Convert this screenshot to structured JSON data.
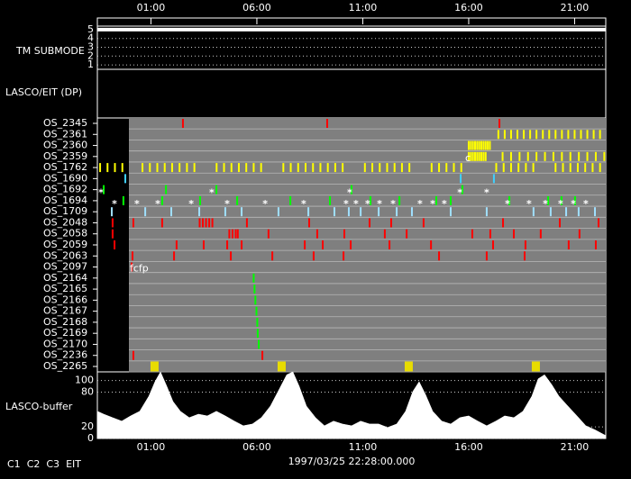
{
  "chart_data": [
    {
      "type": "step",
      "title": "TM SUBMODE",
      "x": [
        -1.53,
        22.47
      ],
      "values": [
        5,
        5
      ],
      "color": "#ffffff",
      "ylim": [
        0.5,
        5.4
      ],
      "yticks": [
        1,
        2,
        3,
        4,
        5
      ],
      "grid": true
    },
    {
      "type": "timeline",
      "title": "LASCO/EIT (DP)",
      "xlim": [
        -1.53,
        22.47
      ],
      "xticks": [
        {
          "value": 1,
          "label": "01:00"
        },
        {
          "value": 6,
          "label": "06:00"
        },
        {
          "value": 11,
          "label": "11:00"
        },
        {
          "value": 16,
          "label": "16:00"
        },
        {
          "value": 21,
          "label": "21:00"
        }
      ],
      "rows": [
        {
          "name": "OS_2345",
          "color": "#ff0000",
          "x": [
            2.51,
            9.32,
            17.45
          ]
        },
        {
          "name": "OS_2361",
          "color": "#ffff00",
          "x": [
            17.4,
            17.7,
            18.0,
            18.3,
            18.6,
            18.9,
            19.2,
            19.5,
            19.8,
            20.1,
            20.4,
            20.7,
            21.0,
            21.3,
            21.6,
            21.9,
            22.2
          ]
        },
        {
          "name": "OS_2360",
          "color": "#ffff00",
          "x": [
            16.0,
            16.1,
            16.2,
            16.3,
            16.4,
            16.5,
            16.6,
            16.7,
            16.8,
            16.9,
            17.0
          ]
        },
        {
          "name": "OS_2359",
          "color": "#ffff00",
          "x": [
            16.0,
            16.1,
            16.2,
            16.3,
            16.4,
            16.5,
            16.6,
            16.7,
            16.8,
            17.6,
            18.0,
            18.4,
            18.8,
            19.2,
            19.6,
            20.0,
            20.4,
            20.8,
            21.2,
            21.6,
            22.0,
            22.4
          ]
        },
        {
          "name": "OS_1762",
          "color": "#ffff00",
          "x": [
            -1.4,
            -1.05,
            -0.7,
            -0.35,
            0.6,
            0.95,
            1.3,
            1.65,
            2.0,
            2.35,
            2.7,
            3.05,
            4.1,
            4.45,
            4.8,
            5.15,
            5.5,
            5.85,
            6.2,
            7.25,
            7.6,
            7.95,
            8.3,
            8.65,
            9.0,
            9.35,
            9.7,
            10.05,
            11.1,
            11.45,
            11.8,
            12.15,
            12.5,
            12.85,
            13.2,
            14.25,
            14.6,
            14.95,
            15.3,
            15.65,
            17.3,
            17.65,
            18.0,
            18.35,
            18.7,
            19.05,
            20.1,
            20.45,
            20.8,
            21.15,
            21.5,
            21.85,
            22.2
          ]
        },
        {
          "name": "OS_1690",
          "color": "#40d0ff",
          "x": [
            -0.21,
            15.62,
            17.19
          ]
        },
        {
          "name": "OS_1692",
          "color": "#00ff00",
          "x": [
            -1.23,
            1.71,
            4.09,
            10.47,
            15.7
          ],
          "marker": "*",
          "marker_x": [
            -1.36,
            3.87,
            10.38,
            15.58,
            16.85
          ]
        },
        {
          "name": "OS_1694",
          "color": "#00ff00",
          "x": [
            -0.3,
            1.53,
            3.32,
            5.07,
            7.58,
            9.45,
            11.36,
            12.73,
            14.47,
            15.15,
            17.92,
            19.75,
            20.38,
            21.02
          ],
          "marker": "*",
          "marker_x": [
            -0.72,
            0.34,
            1.32,
            2.9,
            4.6,
            6.39,
            8.21,
            10.21,
            10.68,
            11.23,
            11.79,
            12.43,
            13.7,
            14.3,
            14.85,
            17.83,
            18.85,
            19.62,
            20.34,
            20.94,
            21.53
          ]
        },
        {
          "name": "OS_1709",
          "color": "#a0e0ff",
          "x": [
            -0.85,
            0.73,
            1.96,
            3.28,
            4.51,
            5.28,
            7.02,
            8.43,
            9.66,
            10.34,
            10.9,
            11.75,
            12.6,
            13.32,
            15.15,
            16.85,
            19.06,
            19.87,
            20.6,
            21.19,
            21.96
          ]
        },
        {
          "name": "OS_2048",
          "color": "#ff0000",
          "x": [
            -0.81,
            0.17,
            1.53,
            3.3,
            3.45,
            3.6,
            3.75,
            3.9,
            5.53,
            8.47,
            11.32,
            12.34,
            13.87,
            17.62,
            20.3,
            22.13
          ]
        },
        {
          "name": "OS_2058",
          "color": "#ff0000",
          "x": [
            -0.81,
            4.7,
            4.85,
            5.0,
            5.1,
            6.55,
            8.85,
            10.13,
            12.04,
            13.07,
            16.17,
            17.02,
            18.13,
            19.4,
            21.23
          ]
        },
        {
          "name": "OS_2059",
          "color": "#ff0000",
          "x": [
            -0.72,
            2.21,
            3.49,
            4.6,
            5.28,
            8.26,
            9.11,
            10.43,
            12.26,
            14.22,
            17.15,
            18.68,
            20.72,
            22.0
          ]
        },
        {
          "name": "OS_2063",
          "color": "#ff0000",
          "x": [
            0.13,
            2.09,
            4.77,
            6.73,
            8.68,
            10.09,
            14.6,
            16.85,
            18.64
          ]
        },
        {
          "name": "OS_2097",
          "color": "#ff0000",
          "x": [
            0.09
          ]
        },
        {
          "name": "OS_2164",
          "color": "#00ff00",
          "x": [
            5.85
          ]
        },
        {
          "name": "OS_2165",
          "color": "#00ff00",
          "x": [
            5.89
          ]
        },
        {
          "name": "OS_2166",
          "color": "#00ff00",
          "x": [
            5.93
          ]
        },
        {
          "name": "OS_2167",
          "color": "#00ff00",
          "x": [
            5.98
          ]
        },
        {
          "name": "OS_2168",
          "color": "#00ff00",
          "x": [
            6.02
          ]
        },
        {
          "name": "OS_2169",
          "color": "#00ff00",
          "x": [
            6.04
          ]
        },
        {
          "name": "OS_2170",
          "color": "#00ff00",
          "x": [
            6.09
          ]
        },
        {
          "name": "OS_2236",
          "color": "#ff0000",
          "x": [
            0.17,
            6.26
          ]
        },
        {
          "name": "OS_2265",
          "color": "#e8dc00",
          "style": "block",
          "x": [
            1.17,
            7.17,
            13.17,
            19.17
          ]
        }
      ],
      "annotations": [
        {
          "text": "c",
          "x": 15.83,
          "row": 3,
          "color": "#ffffff"
        },
        {
          "text": "fcfp",
          "x": 0.0,
          "row": 13,
          "color": "#ffff00"
        }
      ]
    },
    {
      "type": "area",
      "title": "LASCO-buffer",
      "color": "#ffffff",
      "x": [
        -1.53,
        -1.23,
        -0.81,
        -0.38,
        0.04,
        0.47,
        0.9,
        1.19,
        1.45,
        1.75,
        2.04,
        2.39,
        2.81,
        3.24,
        3.66,
        4.09,
        4.51,
        4.94,
        5.36,
        5.79,
        6.21,
        6.64,
        7.07,
        7.41,
        7.7,
        8.0,
        8.34,
        8.77,
        9.19,
        9.62,
        10.04,
        10.47,
        10.9,
        11.32,
        11.75,
        12.17,
        12.6,
        13.02,
        13.36,
        13.66,
        13.96,
        14.3,
        14.73,
        15.15,
        15.58,
        16.0,
        16.43,
        16.85,
        17.28,
        17.7,
        18.13,
        18.56,
        18.98,
        19.28,
        19.58,
        19.92,
        20.26,
        20.68,
        21.11,
        21.53,
        21.96,
        22.47
      ],
      "values": [
        47,
        42,
        36,
        30,
        39,
        47,
        73,
        98,
        115,
        90,
        64,
        47,
        36,
        42,
        39,
        47,
        39,
        30,
        22,
        25,
        36,
        56,
        86,
        110,
        115,
        90,
        56,
        36,
        22,
        30,
        25,
        22,
        30,
        25,
        25,
        19,
        25,
        47,
        81,
        98,
        76,
        47,
        30,
        25,
        36,
        39,
        30,
        22,
        30,
        39,
        36,
        47,
        73,
        103,
        110,
        93,
        73,
        56,
        39,
        22,
        15,
        5
      ],
      "ylim": [
        0,
        115
      ],
      "yticks": [
        0,
        20,
        80,
        100
      ],
      "grid": true
    }
  ],
  "footer": {
    "items": [
      {
        "text": "C1",
        "color": "#ff3030"
      },
      {
        "text": "C2",
        "color": "#00ff00"
      },
      {
        "text": "C3",
        "color": "#ffffff"
      },
      {
        "text": "EIT",
        "color": "#ffffff"
      }
    ],
    "date": "1997/03/25 22:28:00.000"
  }
}
